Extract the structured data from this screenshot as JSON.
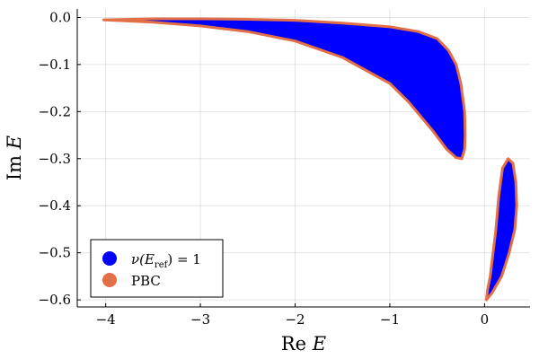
{
  "chart_data": {
    "type": "scatter",
    "title": "",
    "xlabel": "Re E",
    "ylabel": "Im E",
    "xlim": [
      -4.3,
      0.48
    ],
    "ylim": [
      -0.615,
      0.018
    ],
    "xticks": [
      -4,
      -3,
      -2,
      -1,
      0
    ],
    "xtick_labels": [
      "−4",
      "−3",
      "−2",
      "−1",
      "0"
    ],
    "yticks": [
      0.0,
      -0.1,
      -0.2,
      -0.3,
      -0.4,
      -0.5,
      -0.6
    ],
    "ytick_labels": [
      "0.0",
      "−0.1",
      "−0.2",
      "−0.3",
      "−0.4",
      "−0.5",
      "−0.6"
    ],
    "grid": true,
    "legend_position": "bottom-left",
    "series": [
      {
        "name": "ν(E_ref) = 1",
        "legend_label": {
          "pre": "ν(E",
          "sub": "ref",
          "post": ") = 1"
        },
        "color": "#0000ff",
        "kind": "filled-region",
        "regions": [
          {
            "boundary": [
              [
                -4.02,
                -0.005
              ],
              [
                -3.5,
                -0.003
              ],
              [
                -3.0,
                -0.003
              ],
              [
                -2.5,
                -0.004
              ],
              [
                -2.0,
                -0.006
              ],
              [
                -1.5,
                -0.012
              ],
              [
                -1.0,
                -0.02
              ],
              [
                -0.7,
                -0.03
              ],
              [
                -0.5,
                -0.045
              ],
              [
                -0.38,
                -0.07
              ],
              [
                -0.3,
                -0.1
              ],
              [
                -0.25,
                -0.14
              ],
              [
                -0.21,
                -0.2
              ],
              [
                -0.205,
                -0.25
              ],
              [
                -0.21,
                -0.28
              ],
              [
                -0.24,
                -0.3
              ],
              [
                -0.3,
                -0.298
              ],
              [
                -0.4,
                -0.28
              ],
              [
                -0.55,
                -0.24
              ],
              [
                -0.8,
                -0.18
              ],
              [
                -1.0,
                -0.14
              ],
              [
                -1.5,
                -0.085
              ],
              [
                -2.0,
                -0.05
              ],
              [
                -2.5,
                -0.03
              ],
              [
                -3.0,
                -0.018
              ],
              [
                -3.5,
                -0.01
              ],
              [
                -4.02,
                -0.005
              ]
            ]
          },
          {
            "boundary": [
              [
                0.25,
                -0.3
              ],
              [
                0.3,
                -0.31
              ],
              [
                0.33,
                -0.35
              ],
              [
                0.34,
                -0.4
              ],
              [
                0.32,
                -0.45
              ],
              [
                0.26,
                -0.5
              ],
              [
                0.18,
                -0.55
              ],
              [
                0.08,
                -0.585
              ],
              [
                0.02,
                -0.6
              ],
              [
                0.03,
                -0.58
              ],
              [
                0.06,
                -0.55
              ],
              [
                0.09,
                -0.5
              ],
              [
                0.12,
                -0.45
              ],
              [
                0.15,
                -0.38
              ],
              [
                0.19,
                -0.32
              ],
              [
                0.25,
                -0.3
              ]
            ]
          }
        ]
      },
      {
        "name": "PBC",
        "color": "#e26f46",
        "kind": "boundary-points"
      }
    ]
  }
}
